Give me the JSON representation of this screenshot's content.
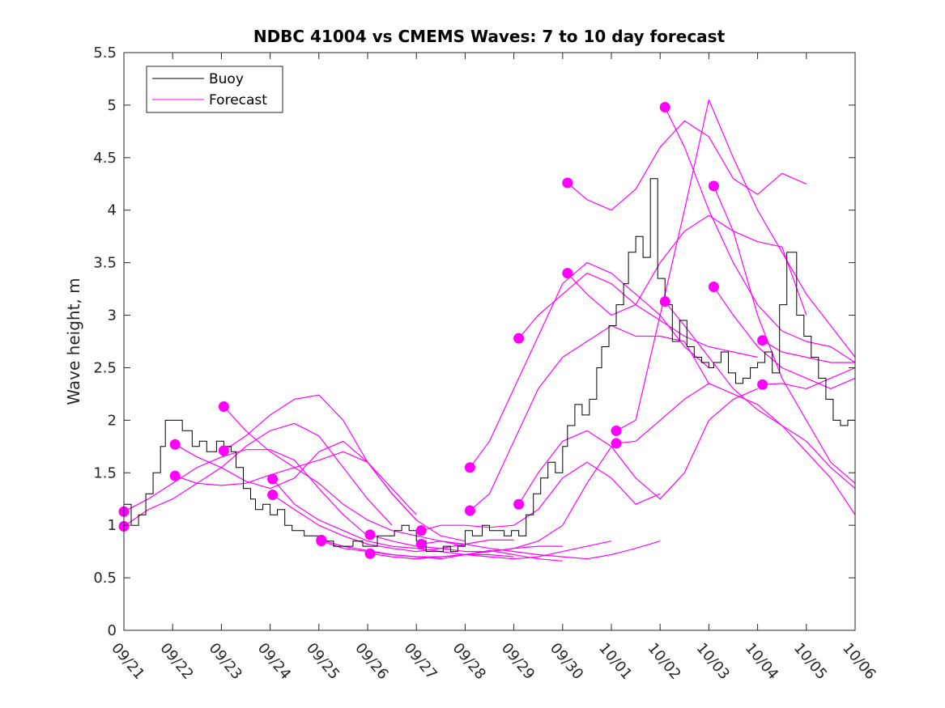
{
  "chart_data": {
    "type": "line",
    "title": "NDBC 41004 vs CMEMS Waves: 7 to 10 day forecast",
    "xlabel": "",
    "ylabel": "Wave height, m",
    "xlim": [
      0,
      15
    ],
    "ylim": [
      0,
      5.5
    ],
    "yticks": [
      0,
      0.5,
      1,
      1.5,
      2,
      2.5,
      3,
      3.5,
      4,
      4.5,
      5,
      5.5
    ],
    "ytick_labels": [
      "0",
      "0.5",
      "1",
      "1.5",
      "2",
      "2.5",
      "3",
      "3.5",
      "4",
      "4.5",
      "5",
      "5.5"
    ],
    "xtick_labels": [
      "09/21",
      "09/22",
      "09/23",
      "09/24",
      "09/25",
      "09/26",
      "09/27",
      "09/28",
      "09/29",
      "09/30",
      "10/01",
      "10/02",
      "10/03",
      "10/04",
      "10/05",
      "10/06"
    ],
    "x_units": "days since 09/21 00:00",
    "legend": {
      "location": "top-left",
      "entries": [
        "Buoy",
        "Forecast"
      ]
    },
    "colors": {
      "buoy": "#000000",
      "forecast": "#ff00ff",
      "axes": "#262626"
    },
    "buoy": {
      "name": "Buoy",
      "x": [
        0,
        0.15,
        0.3,
        0.45,
        0.6,
        0.75,
        0.85,
        1.0,
        1.2,
        1.4,
        1.55,
        1.7,
        1.9,
        2.05,
        2.2,
        2.3,
        2.45,
        2.6,
        2.7,
        2.85,
        3.0,
        3.15,
        3.3,
        3.45,
        3.55,
        3.7,
        3.85,
        4.0,
        4.15,
        4.3,
        4.5,
        4.7,
        4.9,
        5.05,
        5.2,
        5.4,
        5.55,
        5.7,
        5.85,
        6.0,
        6.2,
        6.4,
        6.55,
        6.7,
        6.85,
        7.0,
        7.15,
        7.35,
        7.5,
        7.65,
        7.8,
        7.95,
        8.1,
        8.25,
        8.4,
        8.55,
        8.7,
        8.85,
        9.0,
        9.1,
        9.25,
        9.4,
        9.55,
        9.7,
        9.8,
        9.95,
        10.1,
        10.25,
        10.35,
        10.5,
        10.65,
        10.8,
        10.95,
        11.1,
        11.25,
        11.4,
        11.55,
        11.7,
        11.85,
        12.0,
        12.1,
        12.25,
        12.4,
        12.55,
        12.7,
        12.85,
        13.0,
        13.15,
        13.3,
        13.45,
        13.6,
        13.8,
        13.95,
        14.1,
        14.25,
        14.4,
        14.55,
        14.7,
        14.85,
        15.0
      ],
      "values": [
        1.2,
        1.0,
        1.1,
        1.3,
        1.5,
        1.75,
        2.0,
        2.0,
        1.9,
        1.75,
        1.8,
        1.7,
        1.8,
        1.75,
        1.7,
        1.55,
        1.35,
        1.25,
        1.15,
        1.2,
        1.1,
        1.15,
        1.0,
        0.95,
        0.95,
        0.9,
        0.9,
        0.85,
        0.85,
        0.8,
        0.8,
        0.85,
        0.8,
        0.8,
        0.9,
        0.9,
        0.95,
        1.0,
        0.95,
        0.85,
        0.75,
        0.75,
        0.8,
        0.75,
        0.8,
        0.95,
        0.9,
        1.0,
        0.95,
        0.95,
        0.9,
        0.95,
        0.9,
        1.1,
        1.3,
        1.45,
        1.6,
        1.5,
        1.75,
        1.95,
        2.15,
        2.05,
        2.2,
        2.5,
        2.7,
        2.9,
        3.1,
        3.3,
        3.6,
        3.75,
        3.55,
        4.3,
        3.35,
        3.1,
        2.75,
        2.95,
        2.7,
        2.6,
        2.55,
        2.5,
        2.55,
        2.65,
        2.45,
        2.35,
        2.4,
        2.5,
        2.55,
        2.65,
        2.45,
        3.1,
        3.6,
        3.0,
        2.8,
        2.6,
        2.4,
        2.2,
        2.0,
        1.95,
        2.0,
        2.6
      ]
    },
    "forecasts": [
      {
        "x": [
          0.0,
          0.5,
          1.0,
          1.5,
          2.0,
          2.5,
          3.0,
          3.5,
          4.0,
          4.5,
          5.0
        ],
        "values": [
          1.13,
          1.25,
          1.4,
          1.55,
          1.65,
          1.72,
          1.72,
          1.62,
          1.35,
          1.1,
          0.9
        ]
      },
      {
        "x": [
          0.0,
          0.5,
          1.0,
          1.5,
          2.0,
          2.5,
          3.0,
          3.5,
          4.0,
          4.5,
          5.0,
          5.5
        ],
        "values": [
          0.99,
          1.15,
          1.25,
          1.4,
          1.55,
          1.75,
          1.9,
          1.97,
          1.85,
          1.55,
          1.25,
          1.0
        ]
      },
      {
        "x": [
          1.05,
          1.5,
          2.0,
          2.5,
          3.0,
          3.5,
          4.0,
          4.5,
          5.0,
          5.5,
          6.0
        ],
        "values": [
          1.77,
          1.65,
          1.55,
          1.42,
          1.35,
          1.45,
          1.7,
          1.8,
          1.6,
          1.3,
          1.05
        ]
      },
      {
        "x": [
          1.05,
          1.5,
          2.0,
          2.5,
          3.0,
          3.5,
          4.0,
          4.5,
          5.0,
          5.5,
          6.0
        ],
        "values": [
          1.47,
          1.4,
          1.38,
          1.4,
          1.48,
          1.55,
          1.62,
          1.7,
          1.6,
          1.35,
          1.1
        ]
      },
      {
        "x": [
          2.05,
          2.5,
          3.0,
          3.5,
          4.0,
          4.5,
          5.0,
          5.5,
          6.0,
          6.5,
          7.0
        ],
        "values": [
          2.13,
          1.9,
          1.7,
          1.55,
          1.4,
          1.2,
          1.05,
          0.95,
          0.9,
          0.85,
          0.8
        ]
      },
      {
        "x": [
          2.05,
          2.5,
          3.0,
          3.5,
          4.0,
          4.5,
          5.0,
          5.5,
          6.0,
          6.5,
          7.0
        ],
        "values": [
          1.71,
          1.85,
          2.05,
          2.2,
          2.24,
          2.0,
          1.6,
          1.3,
          1.05,
          0.9,
          0.85
        ]
      },
      {
        "x": [
          3.05,
          3.5,
          4.0,
          4.5,
          5.0,
          5.5,
          6.0,
          6.5,
          7.0,
          7.5,
          8.0
        ],
        "values": [
          1.44,
          1.2,
          1.05,
          0.95,
          0.85,
          0.8,
          0.78,
          0.75,
          0.72,
          0.72,
          0.7
        ]
      },
      {
        "x": [
          3.05,
          3.5,
          4.0,
          4.5,
          5.0,
          5.5,
          6.0,
          6.5,
          7.0,
          7.5,
          8.0
        ],
        "values": [
          1.29,
          1.15,
          1.0,
          0.9,
          0.82,
          0.78,
          0.75,
          0.78,
          0.82,
          0.86,
          0.86
        ]
      },
      {
        "x": [
          4.05,
          4.5,
          5.0,
          5.5,
          6.0,
          6.5,
          7.0,
          7.5,
          8.0,
          8.5,
          9.0
        ],
        "values": [
          0.85,
          0.78,
          0.75,
          0.72,
          0.7,
          0.7,
          0.72,
          0.75,
          0.78,
          0.8,
          0.8
        ]
      },
      {
        "x": [
          4.05,
          4.5,
          5.0,
          5.5,
          6.0,
          6.5,
          7.0,
          7.5,
          8.0,
          8.5,
          9.0
        ],
        "values": [
          0.86,
          0.8,
          0.76,
          0.72,
          0.7,
          0.68,
          0.72,
          0.76,
          0.72,
          0.68,
          0.66
        ]
      },
      {
        "x": [
          5.05,
          5.5,
          6.0,
          6.5,
          7.0,
          7.5,
          8.0,
          8.5,
          9.0,
          9.5,
          10.0
        ],
        "values": [
          0.91,
          0.85,
          0.8,
          0.78,
          0.75,
          0.75,
          0.78,
          0.85,
          1.0,
          1.4,
          1.75
        ]
      },
      {
        "x": [
          5.05,
          5.5,
          6.0,
          6.5,
          7.0,
          7.5,
          8.0,
          8.5,
          9.0,
          9.5,
          10.0
        ],
        "values": [
          0.73,
          0.7,
          0.68,
          0.7,
          0.72,
          0.7,
          0.68,
          0.7,
          0.75,
          0.8,
          0.85
        ]
      },
      {
        "x": [
          6.1,
          6.5,
          7.0,
          7.5,
          8.0,
          8.5,
          9.0,
          9.5,
          10.0,
          10.5,
          11.0
        ],
        "values": [
          0.95,
          1.0,
          1.0,
          0.98,
          1.0,
          1.15,
          1.45,
          1.6,
          1.45,
          1.2,
          1.3
        ]
      },
      {
        "x": [
          6.1,
          6.5,
          7.0,
          7.5,
          8.0,
          8.5,
          9.0,
          9.5,
          10.0,
          10.5,
          11.0
        ],
        "values": [
          0.82,
          0.85,
          0.82,
          0.78,
          0.75,
          0.72,
          0.7,
          0.68,
          0.72,
          0.78,
          0.85
        ]
      },
      {
        "x": [
          7.1,
          7.5,
          8.0,
          8.5,
          9.0,
          9.5,
          10.0,
          10.5,
          11.0,
          11.5,
          12.0
        ],
        "values": [
          1.55,
          1.8,
          2.3,
          2.8,
          3.3,
          3.5,
          3.4,
          3.2,
          3.0,
          2.7,
          2.5
        ]
      },
      {
        "x": [
          7.1,
          7.5,
          8.0,
          8.5,
          9.0,
          9.5,
          10.0,
          10.5,
          11.0,
          11.5,
          12.0
        ],
        "values": [
          1.14,
          1.3,
          1.8,
          2.3,
          2.6,
          2.75,
          2.9,
          2.8,
          2.8,
          2.75,
          2.35
        ]
      },
      {
        "x": [
          8.1,
          8.5,
          9.0,
          9.5,
          10.0,
          10.5,
          11.0,
          11.5,
          12.0,
          12.5,
          13.0
        ],
        "values": [
          2.78,
          3.0,
          3.2,
          3.4,
          3.3,
          3.1,
          2.95,
          2.8,
          2.7,
          2.65,
          2.6
        ]
      },
      {
        "x": [
          8.1,
          8.5,
          9.0,
          9.5,
          10.0,
          10.5,
          11.0,
          11.5,
          12.0,
          12.5,
          13.0
        ],
        "values": [
          1.2,
          1.5,
          1.8,
          1.9,
          1.75,
          1.45,
          1.25,
          1.5,
          2.0,
          2.2,
          2.3
        ]
      },
      {
        "x": [
          9.1,
          9.5,
          10.0,
          10.5,
          11.0,
          11.5,
          12.0,
          12.5,
          13.0,
          13.5,
          14.0
        ],
        "values": [
          4.26,
          4.1,
          4.0,
          4.2,
          4.6,
          4.85,
          4.7,
          4.3,
          4.15,
          4.35,
          4.25
        ]
      },
      {
        "x": [
          9.1,
          9.5,
          10.0,
          10.5,
          11.0,
          11.5,
          12.0,
          12.5,
          13.0,
          13.5,
          14.0
        ],
        "values": [
          3.4,
          3.2,
          3.0,
          3.1,
          3.5,
          3.8,
          3.95,
          3.8,
          3.7,
          3.65,
          3.0
        ]
      },
      {
        "x": [
          10.1,
          10.5,
          11.0,
          11.5,
          12.0,
          12.5,
          13.0,
          13.5,
          14.0,
          14.5,
          15.0
        ],
        "values": [
          1.9,
          2.0,
          3.0,
          4.0,
          5.05,
          4.5,
          4.0,
          3.6,
          3.2,
          2.9,
          2.6
        ]
      },
      {
        "x": [
          10.1,
          10.5,
          11.0,
          11.5,
          12.0,
          12.5,
          13.0,
          13.5,
          14.0,
          14.5,
          15.0
        ],
        "values": [
          1.78,
          1.8,
          2.0,
          2.2,
          2.35,
          2.25,
          2.15,
          1.95,
          1.7,
          1.45,
          1.1
        ]
      },
      {
        "x": [
          11.1,
          11.5,
          12.0,
          12.5,
          13.0,
          13.5,
          14.0,
          14.5,
          15.0
        ],
        "values": [
          4.98,
          4.6,
          4.0,
          3.5,
          3.1,
          2.85,
          2.75,
          2.7,
          2.55
        ]
      },
      {
        "x": [
          11.1,
          11.5,
          12.0,
          12.5,
          13.0,
          13.5,
          14.0,
          14.5,
          15.0
        ],
        "values": [
          3.13,
          2.9,
          2.6,
          2.3,
          2.1,
          1.95,
          1.8,
          1.55,
          1.35
        ]
      },
      {
        "x": [
          12.1,
          12.5,
          13.0,
          13.5,
          14.0,
          14.5,
          15.0
        ],
        "values": [
          4.23,
          3.8,
          3.0,
          2.4,
          2.0,
          1.6,
          1.4
        ]
      },
      {
        "x": [
          12.1,
          12.5,
          13.0,
          13.5,
          14.0,
          14.5,
          15.0
        ],
        "values": [
          3.27,
          3.0,
          2.7,
          2.5,
          2.4,
          2.3,
          2.4
        ]
      },
      {
        "x": [
          13.1,
          13.5,
          14.0,
          14.5,
          15.0
        ],
        "values": [
          2.76,
          2.65,
          2.6,
          2.55,
          2.55
        ]
      },
      {
        "x": [
          13.1,
          13.5,
          14.0,
          14.5,
          15.0
        ],
        "values": [
          2.34,
          2.35,
          2.3,
          2.4,
          2.5
        ]
      }
    ]
  }
}
